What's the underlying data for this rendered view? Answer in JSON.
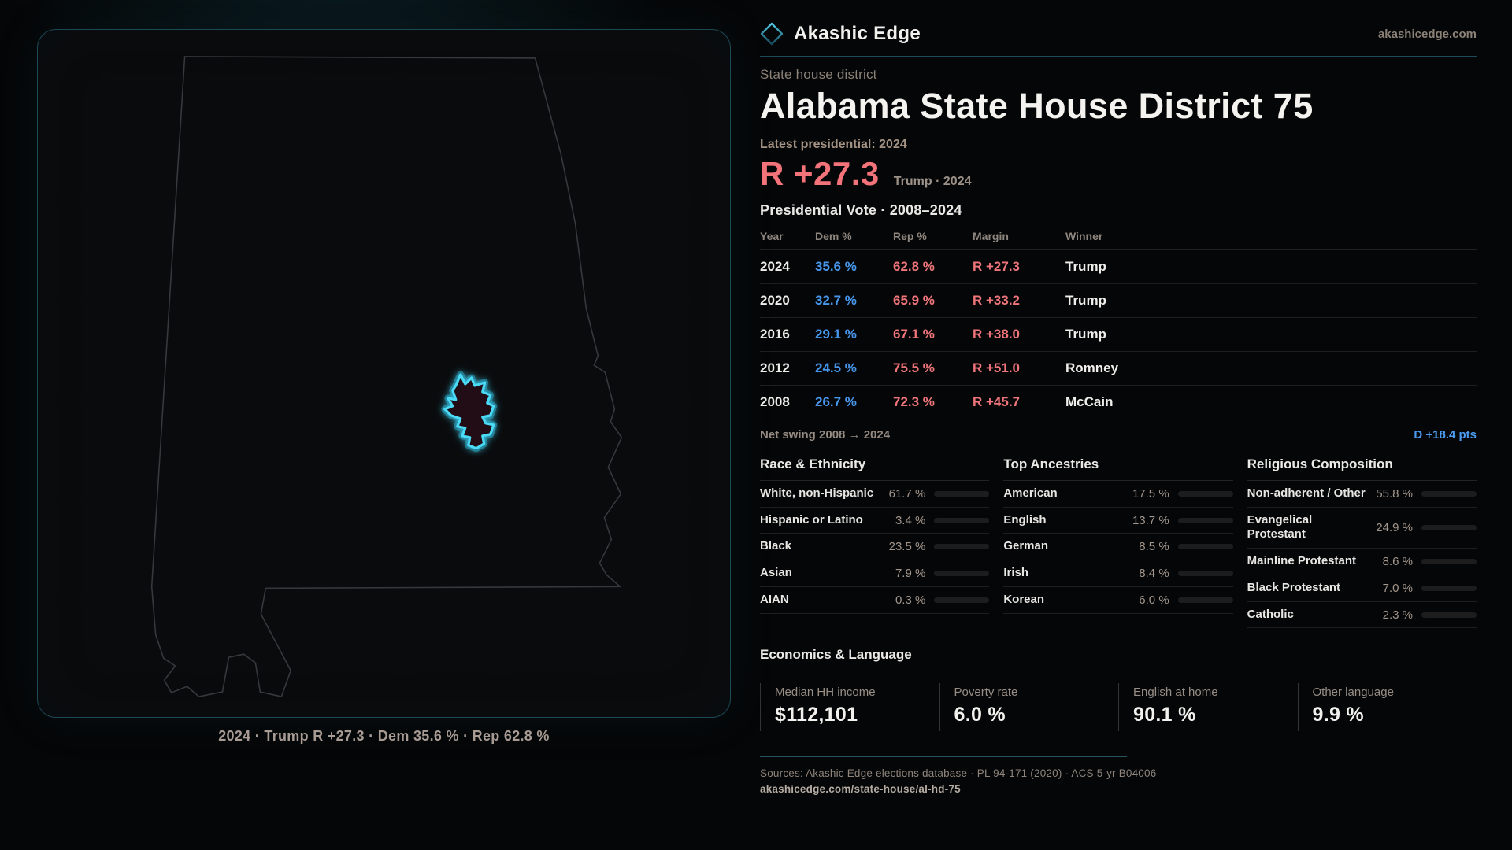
{
  "brand": {
    "name": "Akashic Edge",
    "site": "akashicedge.com",
    "logo_icon": "diamond-outline"
  },
  "colors": {
    "accent_teal": "#2bbcd9",
    "dem_blue": "#4796eb",
    "rep_red": "#ee757a",
    "swing_blue": "#4b9bf2",
    "district_highlight": "#4cdaf6"
  },
  "map": {
    "region": "Alabama",
    "caption": "2024 · Trump R +27.3 · Dem 35.6 % · Rep 62.8 %"
  },
  "header": {
    "kicker": "State house district",
    "title": "Alabama State House District 75",
    "latest": "Latest presidential: 2024",
    "margin_value": "R +27.3",
    "margin_note": "Trump · 2024"
  },
  "vote_table": {
    "title": "Presidential Vote · 2008–2024",
    "columns": [
      "Year",
      "Dem %",
      "Rep %",
      "Margin",
      "Winner"
    ],
    "rows": [
      {
        "year": "2024",
        "dem": "35.6 %",
        "rep": "62.8 %",
        "margin": "R +27.3",
        "winner": "Trump"
      },
      {
        "year": "2020",
        "dem": "32.7 %",
        "rep": "65.9 %",
        "margin": "R +33.2",
        "winner": "Trump"
      },
      {
        "year": "2016",
        "dem": "29.1 %",
        "rep": "67.1 %",
        "margin": "R +38.0",
        "winner": "Trump"
      },
      {
        "year": "2012",
        "dem": "24.5 %",
        "rep": "75.5 %",
        "margin": "R +51.0",
        "winner": "Romney"
      },
      {
        "year": "2008",
        "dem": "26.7 %",
        "rep": "72.3 %",
        "margin": "R +45.7",
        "winner": "McCain"
      }
    ],
    "net_swing_label": "Net swing 2008 → 2024",
    "net_swing_value": "D +18.4 pts"
  },
  "demographics": {
    "race": {
      "title": "Race & Ethnicity",
      "rows": [
        {
          "label": "White, non-Hispanic",
          "value": "61.7 %",
          "pct": 61.7,
          "color": "#92a5c2"
        },
        {
          "label": "Hispanic or Latino",
          "value": "3.4 %",
          "pct": 3.4,
          "color": "#dd9a2e"
        },
        {
          "label": "Black",
          "value": "23.5 %",
          "pct": 23.5,
          "color": "#9d89ec"
        },
        {
          "label": "Asian",
          "value": "7.9 %",
          "pct": 7.9,
          "color": "#33c998"
        },
        {
          "label": "AIAN",
          "value": "0.3 %",
          "pct": 0.3,
          "color": "#9aa7b5"
        }
      ]
    },
    "ancestries": {
      "title": "Top Ancestries",
      "rows": [
        {
          "label": "American",
          "value": "17.5 %",
          "pct": 17.5,
          "color": "#8299b4"
        },
        {
          "label": "English",
          "value": "13.7 %",
          "pct": 13.7,
          "color": "#8299b4"
        },
        {
          "label": "German",
          "value": "8.5 %",
          "pct": 8.5,
          "color": "#8299b4"
        },
        {
          "label": "Irish",
          "value": "8.4 %",
          "pct": 8.4,
          "color": "#8299b4"
        },
        {
          "label": "Korean",
          "value": "6.0 %",
          "pct": 6.0,
          "color": "#2fc98f"
        }
      ]
    },
    "religion": {
      "title": "Religious Composition",
      "rows": [
        {
          "label": "Non-adherent / Other",
          "value": "55.8 %",
          "pct": 55.8,
          "color": "#72849c"
        },
        {
          "label": "Evangelical Protestant",
          "value": "24.9 %",
          "pct": 24.9,
          "color": "#ef8186"
        },
        {
          "label": "Mainline Protestant",
          "value": "8.6 %",
          "pct": 8.6,
          "color": "#4a9af0"
        },
        {
          "label": "Black Protestant",
          "value": "7.0 %",
          "pct": 7.0,
          "color": "#9d89ec"
        },
        {
          "label": "Catholic",
          "value": "2.3 %",
          "pct": 2.3,
          "color": "#e0b229"
        }
      ]
    }
  },
  "economics": {
    "title": "Economics & Language",
    "stats": [
      {
        "label": "Median HH income",
        "value": "$112,101"
      },
      {
        "label": "Poverty rate",
        "value": "6.0 %"
      },
      {
        "label": "English at home",
        "value": "90.1 %"
      },
      {
        "label": "Other language",
        "value": "9.9 %"
      }
    ]
  },
  "footer": {
    "sources": "Sources: Akashic Edge elections database · PL 94-171 (2020) · ACS 5-yr B04006",
    "permalink": "akashicedge.com/state-house/al-hd-75"
  }
}
